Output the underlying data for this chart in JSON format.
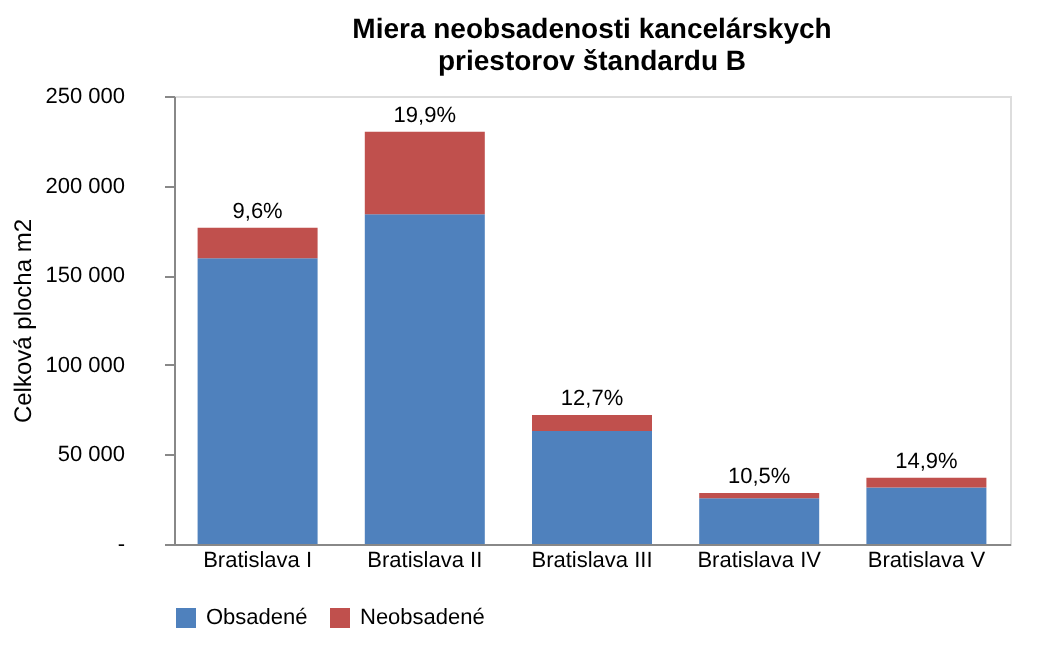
{
  "chart_data": {
    "type": "bar",
    "title": "Miera neobsadenosti kancelárskych priestorov štandardu B",
    "categories": [
      "Bratislava I",
      "Bratislava II",
      "Bratislava III",
      "Bratislava IV",
      "Bratislava V"
    ],
    "stacked": true,
    "series": [
      {
        "name": "Obsadené",
        "color": "#4f81bd",
        "values": [
          159500,
          184000,
          63000,
          25500,
          31500
        ]
      },
      {
        "name": "Neobsadené",
        "color": "#c0504d",
        "values": [
          17000,
          46000,
          9000,
          3000,
          5500
        ]
      }
    ],
    "ylabel": "Celková  plocha m2",
    "ylim": [
      0,
      250000
    ],
    "yticks": [
      {
        "value": 0,
        "label": "-"
      },
      {
        "value": 50000,
        "label": "50 000"
      },
      {
        "value": 100000,
        "label": "100 000"
      },
      {
        "value": 150000,
        "label": "150 000"
      },
      {
        "value": 200000,
        "label": "200 000"
      },
      {
        "value": 250000,
        "label": "250 000"
      }
    ],
    "annotations": [
      {
        "text": "9,6%",
        "x": "Bratislava I",
        "y": 176500
      },
      {
        "text": "19,9%",
        "x": "Bratislava II",
        "y": 230000
      },
      {
        "text": "12,7%",
        "x": "Bratislava III",
        "y": 72000
      },
      {
        "text": "10,5%",
        "x": "Bratislava IV",
        "y": 28500
      },
      {
        "text": "14,9%",
        "x": "Bratislava V",
        "y": 37000
      }
    ],
    "grid": false,
    "legend": "bottom"
  }
}
